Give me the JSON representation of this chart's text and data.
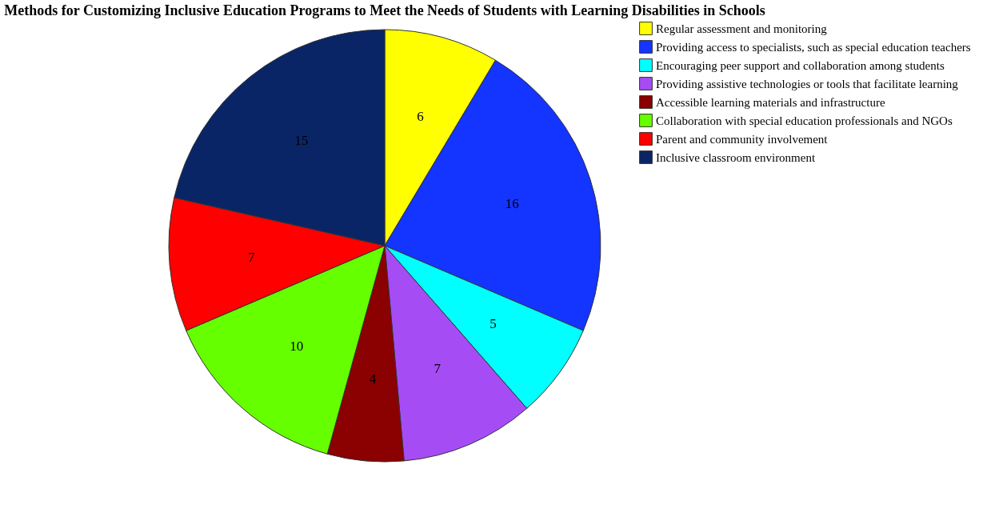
{
  "chart_data": {
    "type": "pie",
    "title": "Methods for Customizing Inclusive Education Programs to Meet the Needs of Students with Learning Disabilities in Schools",
    "categories": [
      "Regular assessment and monitoring",
      "Providing access to specialists, such as special education teachers",
      "Encouraging peer support and collaboration among students",
      "Providing assistive technologies or tools that facilitate learning",
      "Accessible learning materials and infrastructure",
      "Collaboration with special education professionals and NGOs",
      "Parent and community involvement",
      "Inclusive classroom environment"
    ],
    "values": [
      6,
      16,
      5,
      7,
      4,
      10,
      7,
      15
    ],
    "colors": [
      "#ffff00",
      "#1434ff",
      "#00ffff",
      "#a64cf5",
      "#8b0000",
      "#66ff00",
      "#ff0000",
      "#0a2565"
    ],
    "data_labels": true,
    "legend": "right"
  }
}
